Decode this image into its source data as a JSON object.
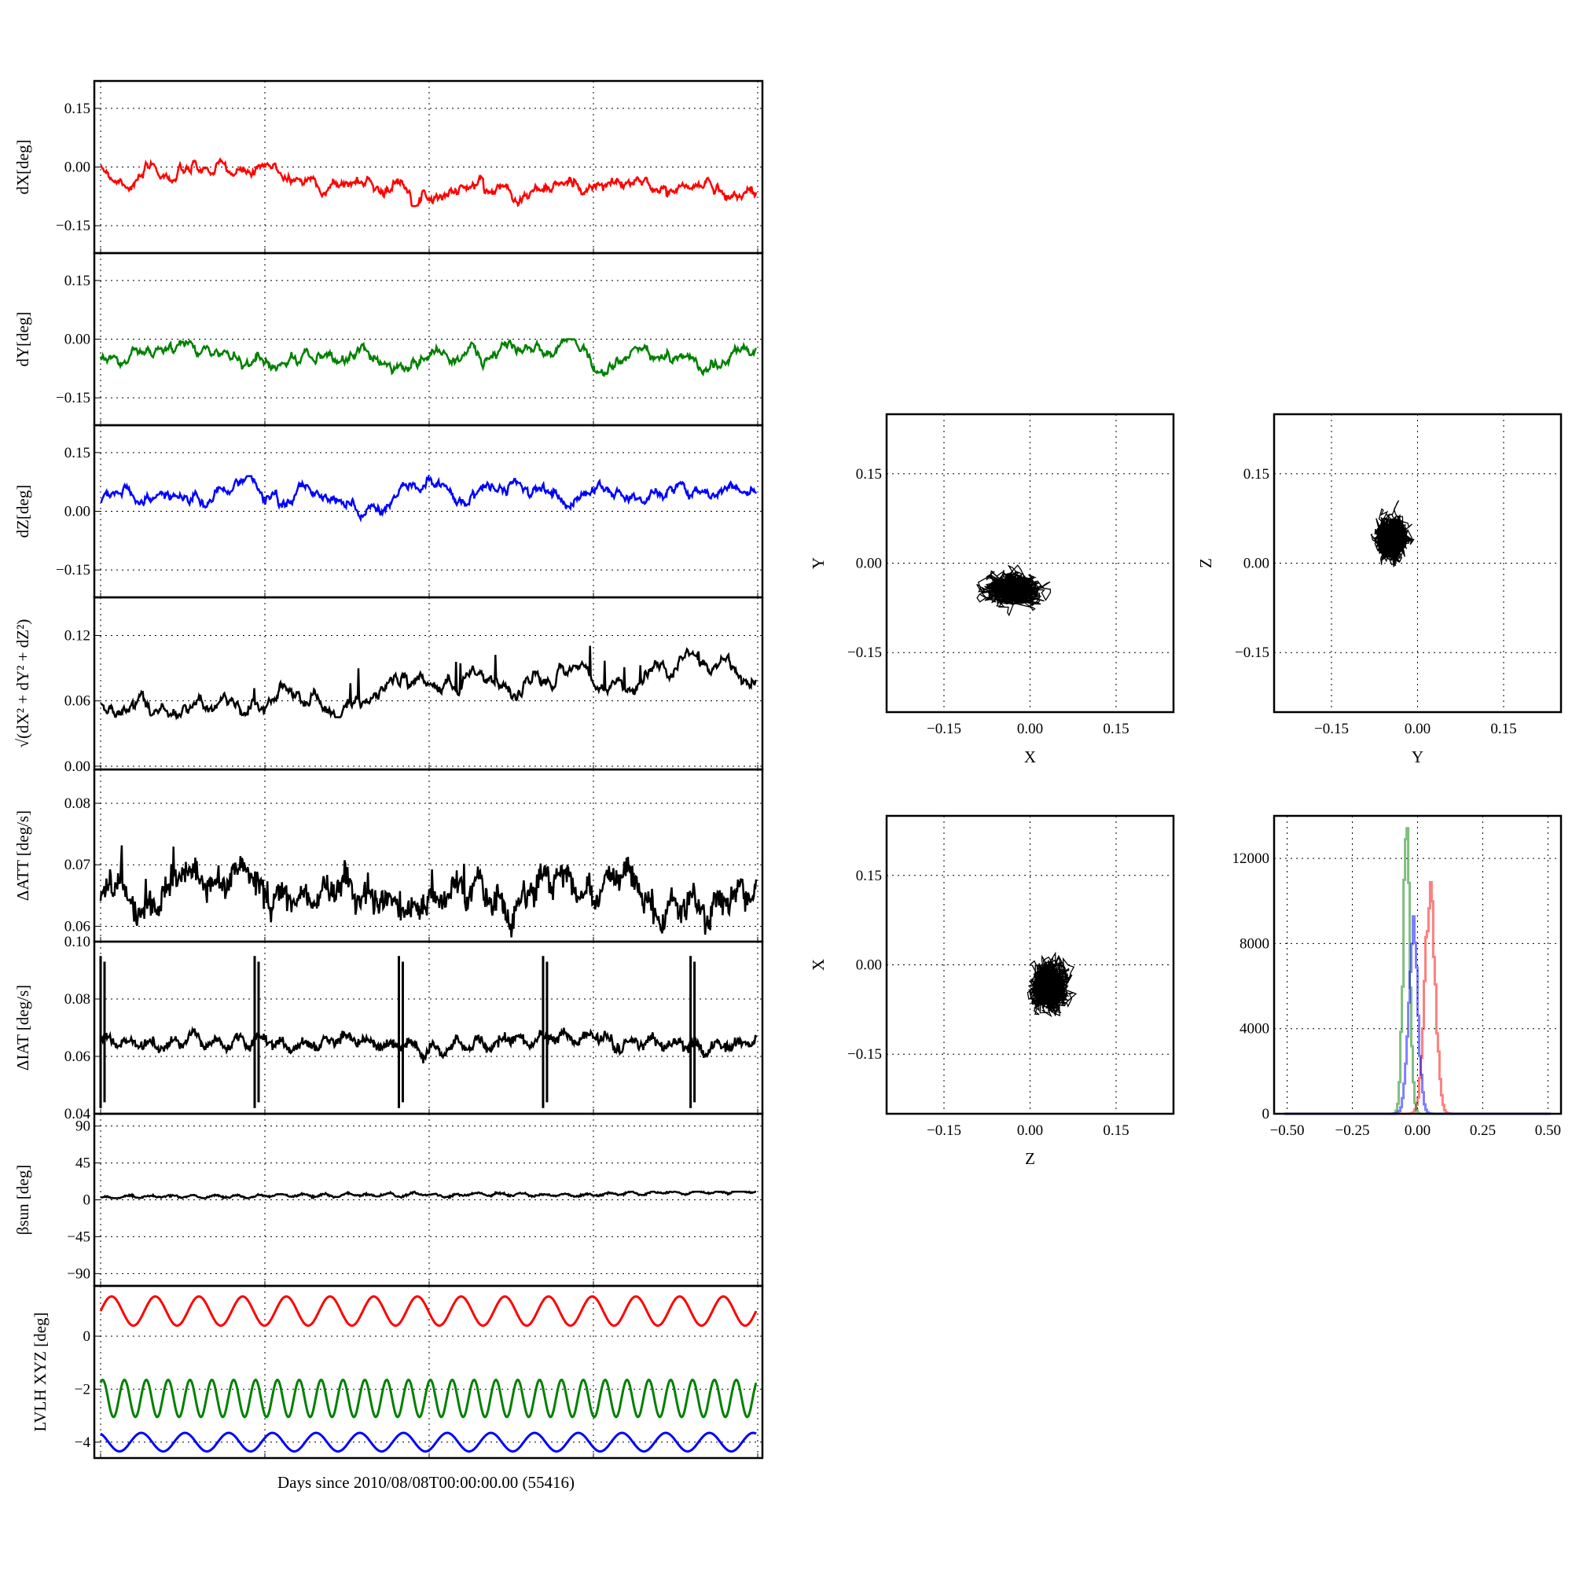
{
  "figure": {
    "xlabel": "Days since 2010/08/08T00:00:00.00 (55416)"
  },
  "colors": {
    "x": "#ff0000",
    "y": "#008000",
    "z": "#0000ff",
    "k": "#000000"
  },
  "chart_data": [
    {
      "type": "line",
      "id": "dx",
      "ylabel": "dX[deg]",
      "ylim": [
        -0.22,
        0.22
      ],
      "yticks": [
        -0.15,
        0.0,
        0.15
      ],
      "ytick_labels": [
        "−0.15",
        "0.00",
        "0.15"
      ],
      "grid": true,
      "series": [
        {
          "color": "#ff0000",
          "mean_start": -0.02,
          "mean_end": -0.06,
          "noise": 0.012,
          "values_range": [
            -0.1,
            0.02
          ]
        }
      ]
    },
    {
      "type": "line",
      "id": "dy",
      "ylabel": "dY[deg]",
      "ylim": [
        -0.22,
        0.22
      ],
      "yticks": [
        -0.15,
        0.0,
        0.15
      ],
      "ytick_labels": [
        "−0.15",
        "0.00",
        "0.15"
      ],
      "grid": true,
      "series": [
        {
          "color": "#008000",
          "mean_start": -0.04,
          "mean_end": -0.045,
          "noise": 0.012,
          "values_range": [
            -0.1,
            0.0
          ]
        }
      ]
    },
    {
      "type": "line",
      "id": "dz",
      "ylabel": "dZ[deg]",
      "ylim": [
        -0.22,
        0.22
      ],
      "yticks": [
        -0.15,
        0.0,
        0.15
      ],
      "ytick_labels": [
        "−0.15",
        "0.00",
        "0.15"
      ],
      "grid": true,
      "series": [
        {
          "color": "#0000ff",
          "mean_start": 0.03,
          "mean_end": 0.06,
          "noise": 0.012,
          "values_range": [
            -0.02,
            0.09
          ]
        }
      ]
    },
    {
      "type": "line",
      "id": "total",
      "ylabel": "√(dX² + dY² + dZ²)",
      "ylim": [
        -0.003,
        0.155
      ],
      "yticks": [
        0.0,
        0.06,
        0.12
      ],
      "ytick_labels": [
        "0.00",
        "0.06",
        "0.12"
      ],
      "grid": true,
      "series": [
        {
          "color": "#000000",
          "mean_start": 0.055,
          "mean_end": 0.09,
          "noise": 0.005,
          "values_range": [
            0.045,
            0.135
          ]
        }
      ]
    },
    {
      "type": "line",
      "id": "datt",
      "ylabel": "ΔATT [deg/s]",
      "ylim": [
        0.0575,
        0.0855
      ],
      "yticks": [
        0.06,
        0.07,
        0.08
      ],
      "ytick_labels": [
        "0.06",
        "0.07",
        "0.08"
      ],
      "grid": true,
      "series": [
        {
          "color": "#000000",
          "mean_start": 0.065,
          "mean_end": 0.065,
          "noise": 0.001,
          "values_range": [
            0.058,
            0.0805
          ]
        }
      ]
    },
    {
      "type": "line",
      "id": "diat",
      "ylabel": "ΔIAT [deg/s]",
      "ylim": [
        0.04,
        0.1
      ],
      "yticks": [
        0.04,
        0.06,
        0.08,
        0.1
      ],
      "ytick_labels": [
        "0.04",
        "0.06",
        "0.08",
        "0.10"
      ],
      "grid": true,
      "series": [
        {
          "color": "#000000",
          "mean_start": 0.065,
          "mean_end": 0.065,
          "noise": 0.0008,
          "values_range": [
            0.042,
            0.095
          ]
        }
      ]
    },
    {
      "type": "line",
      "id": "beta",
      "ylabel": "βsun [deg]",
      "ylim": [
        -105,
        105
      ],
      "yticks": [
        -90,
        -45,
        0,
        45,
        90
      ],
      "ytick_labels": [
        "−90",
        "−45",
        "0",
        "45",
        "90"
      ],
      "grid": true,
      "series": [
        {
          "color": "#000000",
          "mean_start": 3,
          "mean_end": 9,
          "noise": 0.5,
          "values_range": [
            2,
            10
          ]
        }
      ]
    },
    {
      "type": "line",
      "id": "lvlh",
      "ylabel": "LVLH XYZ [deg]",
      "ylim": [
        -4.6,
        1.9
      ],
      "yticks": [
        -4,
        -2,
        0
      ],
      "ytick_labels": [
        "−4",
        "−2",
        "0"
      ],
      "grid": true,
      "series": [
        {
          "color": "#ff0000",
          "center": 0.95,
          "amplitude": 0.55,
          "cycles": 15
        },
        {
          "color": "#008000",
          "center": -2.35,
          "amplitude": 0.7,
          "cycles": 30
        },
        {
          "color": "#0000ff",
          "center": -4.0,
          "amplitude": 0.35,
          "cycles": 15
        }
      ]
    },
    {
      "type": "scatter",
      "id": "xy",
      "xlabel": "X",
      "ylabel": "Y",
      "xlim": [
        -0.25,
        0.25
      ],
      "ylim": [
        -0.25,
        0.25
      ],
      "ticks": [
        -0.15,
        0.0,
        0.15
      ],
      "tick_labels": [
        "−0.15",
        "0.00",
        "0.15"
      ],
      "grid": true,
      "cloud": {
        "center": [
          -0.03,
          -0.045
        ],
        "spread": [
          0.03,
          0.018
        ],
        "color": "#000000"
      }
    },
    {
      "type": "scatter",
      "id": "yz",
      "xlabel": "Y",
      "ylabel": "Z",
      "xlim": [
        -0.25,
        0.25
      ],
      "ylim": [
        -0.25,
        0.25
      ],
      "ticks": [
        -0.15,
        0.0,
        0.15
      ],
      "tick_labels": [
        "−0.15",
        "0.00",
        "0.15"
      ],
      "grid": true,
      "cloud": {
        "center": [
          -0.045,
          0.04
        ],
        "spread": [
          0.018,
          0.025
        ],
        "color": "#000000"
      }
    },
    {
      "type": "scatter",
      "id": "zx",
      "xlabel": "Z",
      "ylabel": "X",
      "xlim": [
        -0.25,
        0.25
      ],
      "ylim": [
        -0.25,
        0.25
      ],
      "ticks": [
        -0.15,
        0.0,
        0.15
      ],
      "tick_labels": [
        "−0.15",
        "0.00",
        "0.15"
      ],
      "grid": true,
      "cloud": {
        "center": [
          0.035,
          -0.035
        ],
        "spread": [
          0.022,
          0.028
        ],
        "color": "#000000"
      }
    },
    {
      "type": "histogram",
      "id": "hist",
      "xlim": [
        -0.55,
        0.55
      ],
      "ylim": [
        0,
        14000
      ],
      "xticks": [
        -0.5,
        -0.25,
        0.0,
        0.25,
        0.5
      ],
      "xtick_labels": [
        "−0.50",
        "−0.25",
        "0.00",
        "0.25",
        "0.50"
      ],
      "yticks": [
        0,
        4000,
        8000,
        12000
      ],
      "ytick_labels": [
        "0",
        "4000",
        "8000",
        "12000"
      ],
      "grid": true,
      "series": [
        {
          "name": "dX",
          "color": "#ff0000",
          "peak_x": 0.045,
          "peak": 10600,
          "width": 0.02
        },
        {
          "name": "dY",
          "color": "#008000",
          "peak_x": -0.045,
          "peak": 12700,
          "width": 0.013
        },
        {
          "name": "dZ",
          "color": "#0000ff",
          "peak_x": -0.02,
          "peak": 8500,
          "width": 0.018
        }
      ]
    }
  ]
}
